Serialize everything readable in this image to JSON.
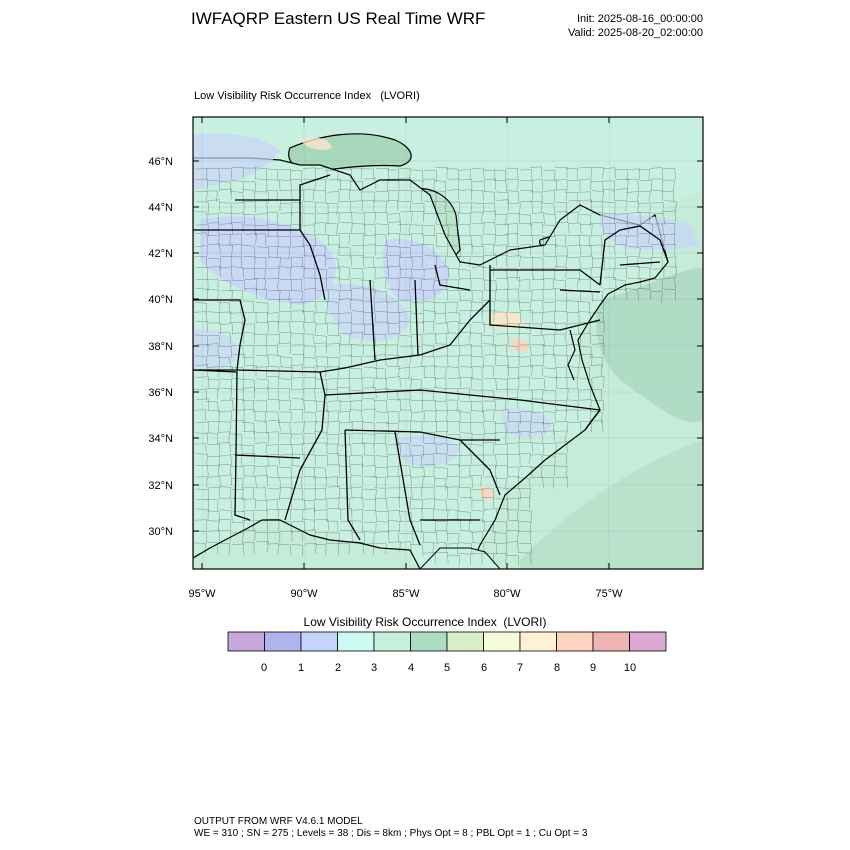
{
  "header": {
    "title": "IWFAQRP Eastern US Real Time WRF",
    "init": "Init: 2025-08-16_00:00:00",
    "valid": "Valid: 2025-08-20_02:00:00"
  },
  "panel": {
    "title": "Low Visibility Risk Occurrence Index   (LVORI)"
  },
  "map": {
    "lon_range": [
      -95.5,
      -70.5
    ],
    "lat_range": [
      28.5,
      47.8
    ],
    "lat_ticks": [
      "46°N",
      "44°N",
      "42°N",
      "40°N",
      "38°N",
      "36°N",
      "34°N",
      "32°N",
      "30°N"
    ],
    "lon_ticks": [
      "95°W",
      "90°W",
      "85°W",
      "80°W",
      "75°W"
    ],
    "ocean_value_color": "#c4ecd8",
    "land_value_color": "#c8f0e0",
    "low_value_color": "#c8d4f8",
    "border_color": "#000000"
  },
  "colorbar": {
    "title": "Low Visibility Risk Occurrence Index  (LVORI)",
    "labels": [
      "0",
      "1",
      "2",
      "3",
      "4",
      "5",
      "6",
      "7",
      "8",
      "9",
      "10"
    ],
    "colors": [
      "#c8a8dc",
      "#b0b4ec",
      "#c4d4fa",
      "#ccfaf0",
      "#c6efdc",
      "#acdcc4",
      "#d8f0c8",
      "#f4fcdc",
      "#fff2d4",
      "#fcd4c0",
      "#f0b4b4",
      "#dca8d4"
    ]
  },
  "footer": {
    "line1": "OUTPUT FROM WRF V4.6.1 MODEL",
    "line2": "WE = 310 ; SN = 275 ; Levels = 38 ; Dis = 8km ; Phys Opt = 8 ; PBL Opt = 1 ; Cu Opt = 3"
  }
}
